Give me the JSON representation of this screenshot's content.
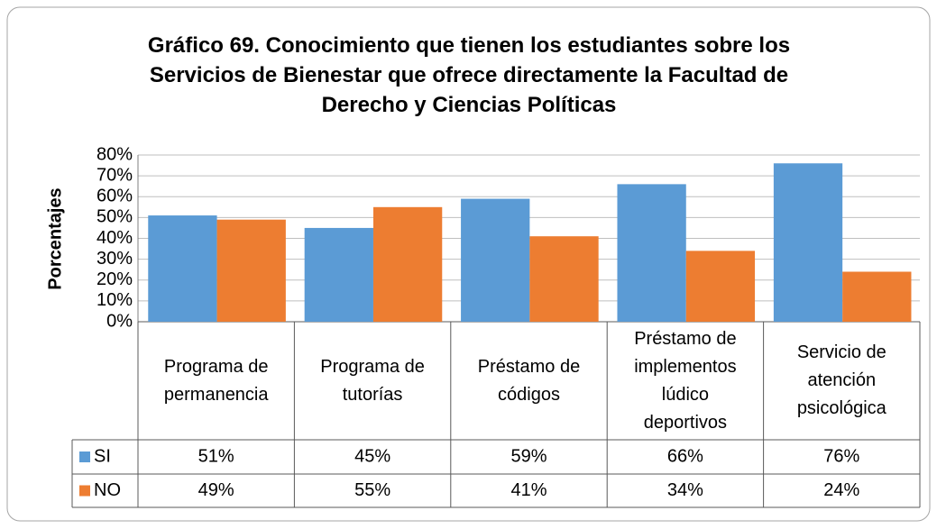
{
  "chart_data": {
    "type": "bar",
    "title": "Gráfico 69. Conocimiento que tienen los estudiantes sobre los Servicios de Bienestar que ofrece directamente la Facultad de Derecho y Ciencias Políticas",
    "y_label": "Porcentajes",
    "categories": [
      "Programa de permanencia",
      "Programa de tutorías",
      "Préstamo de códigos",
      "Préstamo de implementos lúdico deportivos",
      "Servicio de atención psicológica"
    ],
    "series": [
      {
        "name": "SI",
        "color": "#5b9bd5",
        "values": [
          51,
          45,
          59,
          66,
          76
        ],
        "value_labels": [
          "51%",
          "45%",
          "59%",
          "66%",
          "76%"
        ]
      },
      {
        "name": "NO",
        "color": "#ed7d31",
        "values": [
          49,
          55,
          41,
          34,
          24
        ],
        "value_labels": [
          "49%",
          "55%",
          "41%",
          "34%",
          "24%"
        ]
      }
    ],
    "ylim": [
      0,
      80
    ],
    "yticks": [
      {
        "value": 0,
        "label": "0%"
      },
      {
        "value": 10,
        "label": "10%"
      },
      {
        "value": 20,
        "label": "20%"
      },
      {
        "value": 30,
        "label": "30%"
      },
      {
        "value": 40,
        "label": "40%"
      },
      {
        "value": 50,
        "label": "50%"
      },
      {
        "value": 60,
        "label": "60%"
      },
      {
        "value": 70,
        "label": "70%"
      },
      {
        "value": 80,
        "label": "80%"
      }
    ],
    "grid": true
  }
}
